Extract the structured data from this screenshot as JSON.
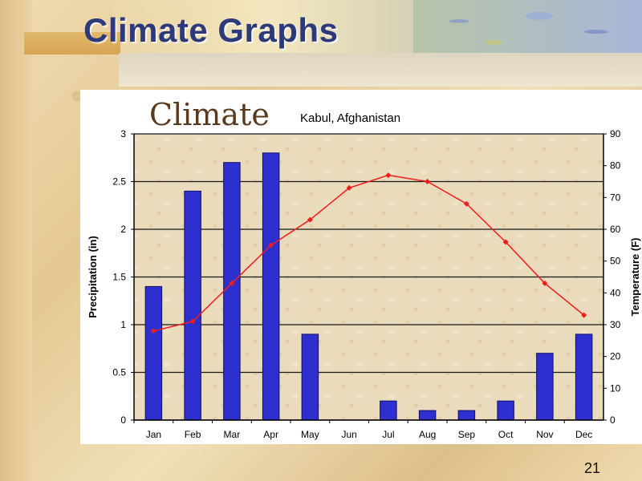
{
  "slide": {
    "title": "Climate Graphs",
    "page_number": "21"
  },
  "chart_data": {
    "type": "bar",
    "title": "Climate",
    "subtitle": "Kabul, Afghanistan",
    "categories": [
      "Jan",
      "Feb",
      "Mar",
      "Apr",
      "May",
      "Jun",
      "Jul",
      "Aug",
      "Sep",
      "Oct",
      "Nov",
      "Dec"
    ],
    "series": [
      {
        "type": "bar",
        "axis": "left",
        "values": [
          1.4,
          2.4,
          2.7,
          2.8,
          0.9,
          0,
          0.2,
          0.1,
          0.1,
          0.2,
          0.7,
          0.9
        ],
        "color": "#2e2fcf"
      },
      {
        "type": "line",
        "axis": "right",
        "values": [
          28,
          31,
          43,
          55,
          63,
          73,
          77,
          75,
          68,
          56,
          43,
          33
        ],
        "color": "#ee1d1d"
      }
    ],
    "ylabel": "Precipitation (in)",
    "y2label": "Temperature (F)",
    "ylim": [
      0,
      3
    ],
    "y2lim": [
      0,
      90
    ],
    "yticks": [
      "0",
      "0.5",
      "1",
      "1.5",
      "2",
      "2.5",
      "3"
    ],
    "y2ticks": [
      "0",
      "10",
      "20",
      "30",
      "40",
      "50",
      "60",
      "70",
      "80",
      "90"
    ],
    "grid": true,
    "plot_background": "#e8d9b8",
    "title_color": "#5a3a1e"
  }
}
